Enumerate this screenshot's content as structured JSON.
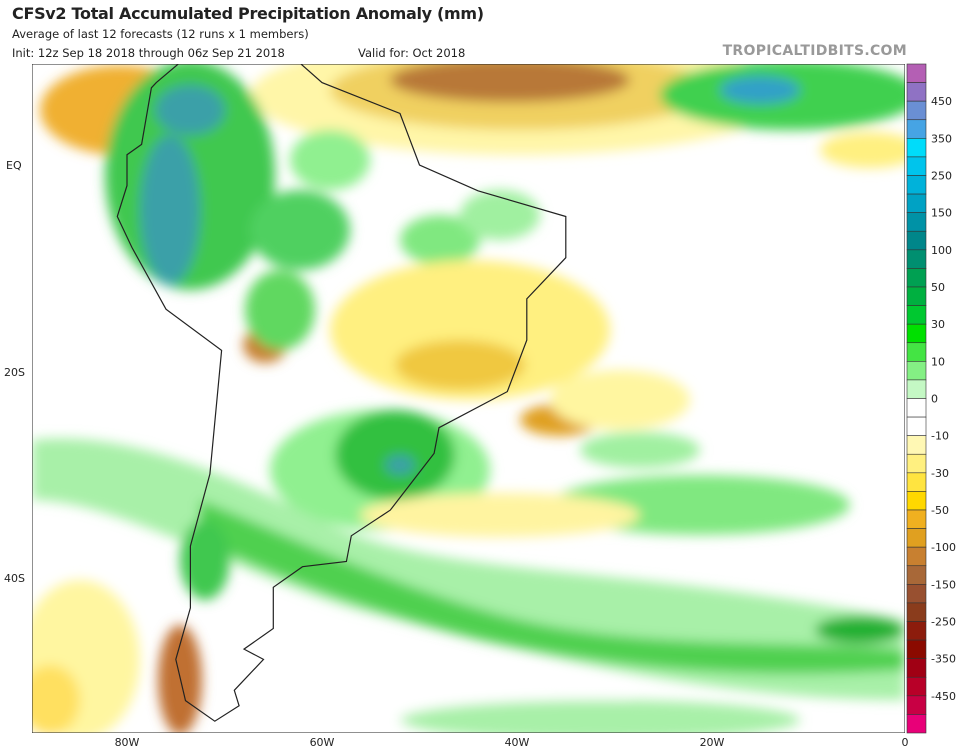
{
  "header": {
    "title": "CFSv2 Total Accumulated Precipitation Anomaly (mm)",
    "subtitle": "Average of last 12 forecasts (12 runs x 1 members)",
    "init": "Init: 12z Sep 18 2018 through 06z Sep 21 2018",
    "valid": "Valid for: Oct 2018",
    "watermark": "TROPICALTIDBITS.COM"
  },
  "map": {
    "region": "South America",
    "lat_labels": [
      "EQ",
      "20S",
      "40S"
    ],
    "lon_labels": [
      "80W",
      "60W",
      "40W",
      "20W",
      "0"
    ]
  },
  "colorbar": {
    "labels": [
      "450",
      "350",
      "250",
      "150",
      "100",
      "50",
      "30",
      "10",
      "0",
      "-10",
      "-30",
      "-50",
      "-100",
      "-150",
      "-250",
      "-350",
      "-450"
    ],
    "colors": [
      "#b45fb4",
      "#8f72c4",
      "#6a8fd4",
      "#46a4e4",
      "#00dcfa",
      "#00c4ec",
      "#00b2da",
      "#00a2c4",
      "#0092a6",
      "#00868a",
      "#008f70",
      "#00a052",
      "#00b040",
      "#00c830",
      "#00e000",
      "#44e444",
      "#84f084",
      "#c4f8c4",
      "#ffffff",
      "#ffffff",
      "#fff8b4",
      "#fff080",
      "#ffe440",
      "#ffd800",
      "#f0b020",
      "#e0a020",
      "#c88030",
      "#a86838",
      "#985030",
      "#8a3c1c",
      "#8c1c0c",
      "#8b0a00",
      "#a00014",
      "#b80028",
      "#c80044",
      "#e80078"
    ]
  }
}
